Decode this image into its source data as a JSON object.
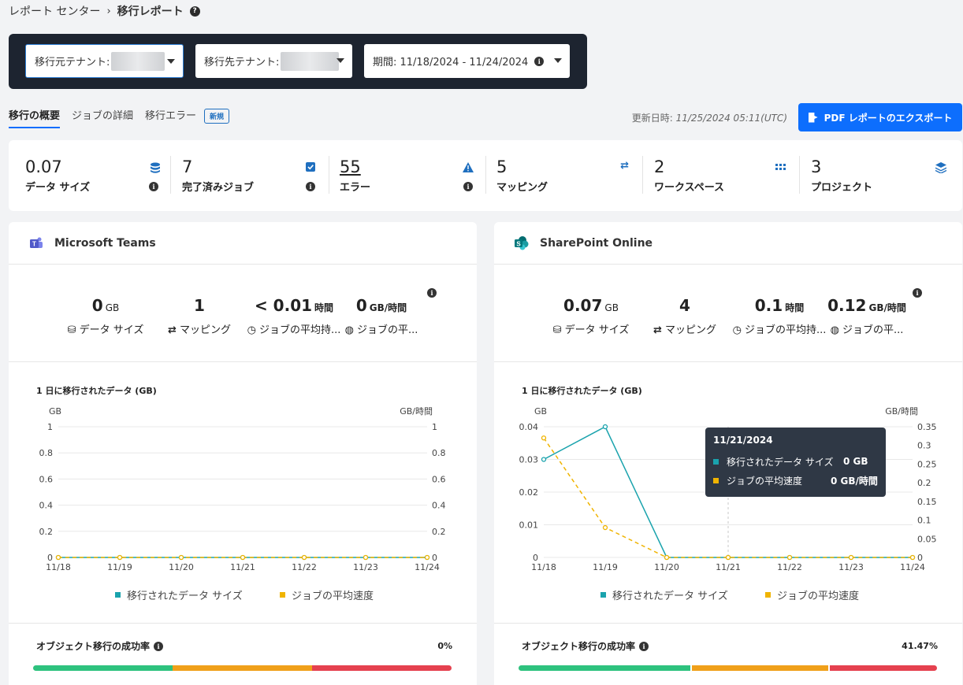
{
  "breadcrumb": {
    "root": "レポート センター",
    "separator": "›",
    "current": "移行レポート"
  },
  "filters": {
    "source_label": "移行元テナント:",
    "dest_label": "移行先テナント:",
    "period_label": "期間: 11/18/2024 - 11/24/2024"
  },
  "tabs": [
    {
      "label": "移行の概要"
    },
    {
      "label": "ジョブの詳細"
    },
    {
      "label": "移行エラー"
    }
  ],
  "new_badge": "新規",
  "updated": {
    "label": "更新日時:",
    "value": "11/25/2024 05:11(UTC)"
  },
  "export_label": "PDF レポートのエクスポート",
  "stats": [
    {
      "value": "0.07",
      "label": "データ サイズ",
      "icon": "database-icon"
    },
    {
      "value": "7",
      "label": "完了済みジョブ",
      "icon": "checkbox-icon"
    },
    {
      "value": "55",
      "label": "エラー",
      "icon": "warning-icon"
    },
    {
      "value": "5",
      "label": "マッピング",
      "icon": "arrows-icon"
    },
    {
      "value": "2",
      "label": "ワークスペース",
      "icon": "grid-icon"
    },
    {
      "value": "3",
      "label": "プロジェクト",
      "icon": "layers-icon"
    }
  ],
  "panels": {
    "teams": {
      "title": "Microsoft Teams",
      "kpis": [
        {
          "value": "0",
          "unit": "GB",
          "label": "データ サイズ"
        },
        {
          "value": "1",
          "unit": "",
          "label": "マッピング"
        },
        {
          "value": "< 0.01",
          "unit": "時間",
          "label": "ジョブの平均持..."
        },
        {
          "value": "0",
          "unit": "GB/時間",
          "label": "ジョブの平..."
        }
      ],
      "chart_title": "1 日に移行されたデータ (GB)",
      "rate_label": "オブジェクト移行の成功率",
      "rate_value": "0%"
    },
    "sharepoint": {
      "title": "SharePoint Online",
      "kpis": [
        {
          "value": "0.07",
          "unit": "GB",
          "label": "データ サイズ"
        },
        {
          "value": "4",
          "unit": "",
          "label": "マッピング"
        },
        {
          "value": "0.1",
          "unit": "時間",
          "label": "ジョブの平均持..."
        },
        {
          "value": "0.12",
          "unit": "GB/時間",
          "label": "ジョブの平..."
        }
      ],
      "chart_title": "1 日に移行されたデータ (GB)",
      "rate_label": "オブジェクト移行の成功率",
      "rate_value": "41.47%",
      "tooltip": {
        "date": "11/21/2024",
        "rows": [
          {
            "name": "移行されたデータ サイズ",
            "value": "0 GB"
          },
          {
            "name": "ジョブの平均速度",
            "value": "0 GB/時間"
          }
        ]
      }
    }
  },
  "legend": {
    "series1": "移行されたデータ サイズ",
    "series2": "ジョブの平均速度"
  },
  "colors": {
    "teal": "#1aa3ad",
    "gold": "#f0b400",
    "green": "#2ec27e",
    "orange": "#f0a01a",
    "red": "#e5414f",
    "accent": "#0d6efd"
  },
  "chart_data": [
    {
      "type": "line",
      "categories": [
        "11/18",
        "11/19",
        "11/20",
        "11/21",
        "11/22",
        "11/23",
        "11/24"
      ],
      "ylabel": "GB",
      "y2label": "GB/時間",
      "ylim": [
        0,
        1
      ],
      "y2lim": [
        0,
        1
      ],
      "yticks": [
        "0",
        "0.2",
        "0.4",
        "0.6",
        "0.8",
        "1"
      ],
      "y2ticks": [
        "0",
        "0.2",
        "0.4",
        "0.6",
        "0.8",
        "1"
      ],
      "series": [
        {
          "name": "移行されたデータ サイズ",
          "axis": "left",
          "values": [
            0,
            0,
            0,
            0,
            0,
            0,
            0
          ]
        },
        {
          "name": "ジョブの平均速度",
          "axis": "right",
          "values": [
            0,
            0,
            0,
            0,
            0,
            0,
            0
          ]
        }
      ]
    },
    {
      "type": "line",
      "categories": [
        "11/18",
        "11/19",
        "11/20",
        "11/21",
        "11/22",
        "11/23",
        "11/24"
      ],
      "ylabel": "GB",
      "y2label": "GB/時間",
      "ylim": [
        0,
        0.04
      ],
      "y2lim": [
        0,
        0.35
      ],
      "yticks": [
        "0",
        "0.01",
        "0.02",
        "0.03",
        "0.04"
      ],
      "y2ticks": [
        "0",
        "0.05",
        "0.1",
        "0.15",
        "0.2",
        "0.25",
        "0.3",
        "0.35"
      ],
      "series": [
        {
          "name": "移行されたデータ サイズ",
          "axis": "left",
          "values": [
            0.03,
            0.04,
            0,
            0,
            0,
            0,
            0
          ]
        },
        {
          "name": "ジョブの平均速度",
          "axis": "right",
          "values": [
            0.32,
            0.08,
            0,
            0,
            0,
            0,
            0
          ]
        }
      ]
    }
  ]
}
